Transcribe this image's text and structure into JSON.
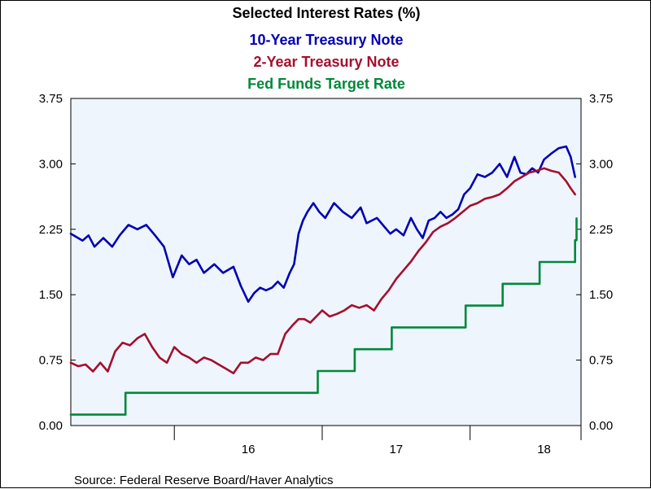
{
  "colors": {
    "background": "#ffffff",
    "plot_background": "#eef5fd",
    "axis": "#000000",
    "ten_year": "#0000b3",
    "two_year": "#a50f2d",
    "fed_funds": "#00883a"
  },
  "chart_data": {
    "type": "line",
    "title": "Selected Interest Rates (%)",
    "source": "Source:  Federal Reserve Board/Haver Analytics",
    "y_ticks": [
      {
        "value": 0.0,
        "label": "0.00"
      },
      {
        "value": 0.75,
        "label": "0.75"
      },
      {
        "value": 1.5,
        "label": "1.50"
      },
      {
        "value": 2.25,
        "label": "2.25"
      },
      {
        "value": 3.0,
        "label": "3.00"
      },
      {
        "value": 3.75,
        "label": "3.75"
      }
    ],
    "ylim": [
      0.0,
      3.75
    ],
    "xlim": [
      2015.3,
      2018.75
    ],
    "year_boundaries": [
      2016.0,
      2017.0,
      2018.0
    ],
    "x_ticks": [
      {
        "value": 2016.5,
        "label": "16"
      },
      {
        "value": 2017.5,
        "label": "17"
      },
      {
        "value": 2018.5,
        "label": "18"
      }
    ],
    "grid": false,
    "legend_position": "top-center",
    "series": [
      {
        "name": "10-Year Treasury Note",
        "color": "#0000b3",
        "step": false,
        "x": [
          2015.3,
          2015.38,
          2015.42,
          2015.46,
          2015.52,
          2015.58,
          2015.63,
          2015.69,
          2015.75,
          2015.81,
          2015.87,
          2015.93,
          2015.99,
          2016.05,
          2016.1,
          2016.15,
          2016.2,
          2016.27,
          2016.33,
          2016.4,
          2016.45,
          2016.5,
          2016.54,
          2016.58,
          2016.62,
          2016.66,
          2016.7,
          2016.74,
          2016.78,
          2016.81,
          2016.84,
          2016.87,
          2016.9,
          2016.94,
          2016.98,
          2017.02,
          2017.08,
          2017.14,
          2017.2,
          2017.26,
          2017.3,
          2017.37,
          2017.42,
          2017.46,
          2017.5,
          2017.55,
          2017.6,
          2017.64,
          2017.68,
          2017.72,
          2017.76,
          2017.8,
          2017.84,
          2017.88,
          2017.92,
          2017.96,
          2018.0,
          2018.05,
          2018.1,
          2018.15,
          2018.2,
          2018.25,
          2018.3,
          2018.34,
          2018.38,
          2018.42,
          2018.46,
          2018.5,
          2018.55,
          2018.6,
          2018.65,
          2018.68,
          2018.71
        ],
        "values": [
          2.2,
          2.12,
          2.18,
          2.05,
          2.15,
          2.05,
          2.18,
          2.3,
          2.25,
          2.3,
          2.18,
          2.05,
          1.7,
          1.95,
          1.85,
          1.9,
          1.75,
          1.85,
          1.75,
          1.82,
          1.6,
          1.42,
          1.52,
          1.58,
          1.55,
          1.58,
          1.65,
          1.58,
          1.75,
          1.85,
          2.2,
          2.35,
          2.45,
          2.55,
          2.45,
          2.38,
          2.55,
          2.45,
          2.38,
          2.5,
          2.32,
          2.38,
          2.28,
          2.2,
          2.25,
          2.18,
          2.38,
          2.25,
          2.15,
          2.35,
          2.38,
          2.45,
          2.38,
          2.42,
          2.48,
          2.65,
          2.72,
          2.88,
          2.85,
          2.9,
          3.0,
          2.85,
          3.08,
          2.9,
          2.88,
          2.95,
          2.9,
          3.05,
          3.12,
          3.18,
          3.2,
          3.08,
          2.85
        ]
      },
      {
        "name": "2-Year Treasury Note",
        "color": "#a50f2d",
        "step": false,
        "x": [
          2015.3,
          2015.35,
          2015.4,
          2015.45,
          2015.5,
          2015.55,
          2015.6,
          2015.65,
          2015.7,
          2015.75,
          2015.8,
          2015.85,
          2015.9,
          2015.95,
          2016.0,
          2016.05,
          2016.1,
          2016.15,
          2016.2,
          2016.25,
          2016.3,
          2016.35,
          2016.4,
          2016.45,
          2016.5,
          2016.55,
          2016.6,
          2016.65,
          2016.7,
          2016.75,
          2016.8,
          2016.84,
          2016.88,
          2016.92,
          2016.96,
          2017.0,
          2017.05,
          2017.1,
          2017.15,
          2017.2,
          2017.25,
          2017.3,
          2017.35,
          2017.4,
          2017.45,
          2017.5,
          2017.55,
          2017.6,
          2017.65,
          2017.7,
          2017.75,
          2017.8,
          2017.85,
          2017.9,
          2017.95,
          2018.0,
          2018.05,
          2018.1,
          2018.15,
          2018.2,
          2018.25,
          2018.3,
          2018.35,
          2018.4,
          2018.45,
          2018.5,
          2018.55,
          2018.6,
          2018.65,
          2018.68,
          2018.71
        ],
        "values": [
          0.72,
          0.68,
          0.7,
          0.62,
          0.72,
          0.62,
          0.85,
          0.95,
          0.92,
          1.0,
          1.05,
          0.9,
          0.78,
          0.72,
          0.9,
          0.82,
          0.78,
          0.72,
          0.78,
          0.75,
          0.7,
          0.65,
          0.6,
          0.72,
          0.72,
          0.78,
          0.75,
          0.82,
          0.82,
          1.05,
          1.15,
          1.22,
          1.22,
          1.18,
          1.25,
          1.32,
          1.25,
          1.28,
          1.32,
          1.38,
          1.35,
          1.38,
          1.32,
          1.45,
          1.55,
          1.68,
          1.78,
          1.88,
          2.0,
          2.1,
          2.22,
          2.28,
          2.32,
          2.38,
          2.45,
          2.52,
          2.55,
          2.6,
          2.62,
          2.65,
          2.72,
          2.8,
          2.85,
          2.9,
          2.92,
          2.95,
          2.92,
          2.9,
          2.8,
          2.72,
          2.65
        ]
      },
      {
        "name": "Fed Funds Target Rate",
        "color": "#00883a",
        "step": true,
        "x": [
          2015.3,
          2015.67,
          2016.0,
          2016.5,
          2016.97,
          2017.22,
          2017.47,
          2017.5,
          2017.97,
          2018.22,
          2018.47,
          2018.71,
          2018.72
        ],
        "values": [
          0.125,
          0.375,
          0.375,
          0.375,
          0.625,
          0.875,
          1.125,
          1.125,
          1.375,
          1.625,
          1.875,
          2.125,
          2.375
        ]
      }
    ]
  }
}
